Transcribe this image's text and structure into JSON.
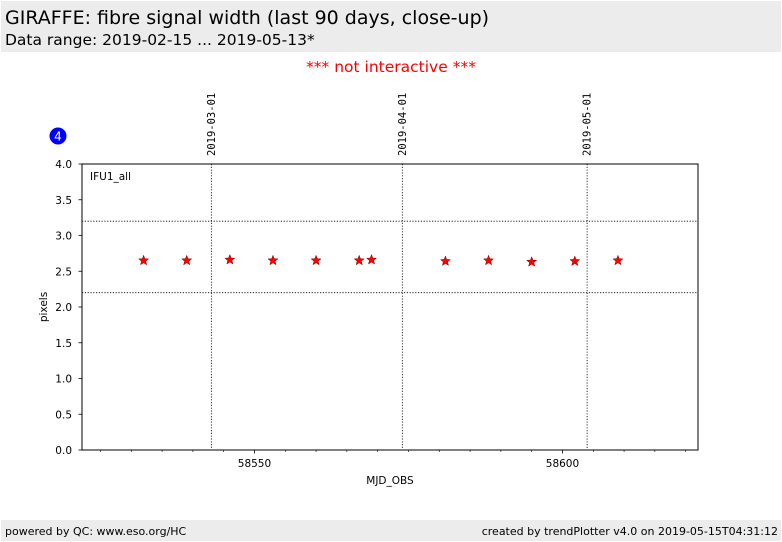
{
  "header": {
    "title": "GIRAFFE: fibre signal width (last 90 days, close-up)",
    "subtitle": "Data range: 2019-02-15 ... 2019-05-13*"
  },
  "notice": "*** not interactive ***",
  "panel_badge": "4",
  "footer": {
    "left": "powered by QC: www.eso.org/HC",
    "right": "created by trendPlotter v4.0 on 2019-05-15T04:31:12"
  },
  "colors": {
    "marker": "#ff0000",
    "badge": "#0000ff",
    "notice": "#ff0000",
    "band": "#ececec"
  },
  "chart_data": {
    "type": "scatter",
    "xlabel": "MJD_OBS",
    "ylabel": "pixels",
    "xlim": [
      58522,
      58622
    ],
    "ylim": [
      0,
      4
    ],
    "x_ticks": [
      58550,
      58600
    ],
    "x_minor_ticks": [
      58525,
      58530,
      58535,
      58540,
      58545,
      58555,
      58560,
      58565,
      58570,
      58575,
      58580,
      58585,
      58590,
      58595,
      58605,
      58610,
      58615,
      58620
    ],
    "y_ticks": [
      0.0,
      0.5,
      1.0,
      1.5,
      2.0,
      2.5,
      3.0,
      3.5,
      4.0
    ],
    "y_tick_labels": [
      "0.0",
      "0.5",
      "1.0",
      "1.5",
      "2.0",
      "2.5",
      "3.0",
      "3.5",
      "4.0"
    ],
    "reference_lines": [
      3.2,
      2.2
    ],
    "date_markers": [
      {
        "label": "2019-03-01",
        "mjd": 58543
      },
      {
        "label": "2019-04-01",
        "mjd": 58574
      },
      {
        "label": "2019-05-01",
        "mjd": 58604
      }
    ],
    "series": [
      {
        "name": "IFU1_all",
        "marker": "star",
        "color": "#ff0000",
        "x": [
          58532,
          58539,
          58546,
          58553,
          58560,
          58567,
          58569,
          58581,
          58588,
          58595,
          58602,
          58609
        ],
        "y": [
          2.65,
          2.65,
          2.66,
          2.65,
          2.65,
          2.65,
          2.66,
          2.64,
          2.65,
          2.63,
          2.64,
          2.65
        ]
      }
    ]
  }
}
